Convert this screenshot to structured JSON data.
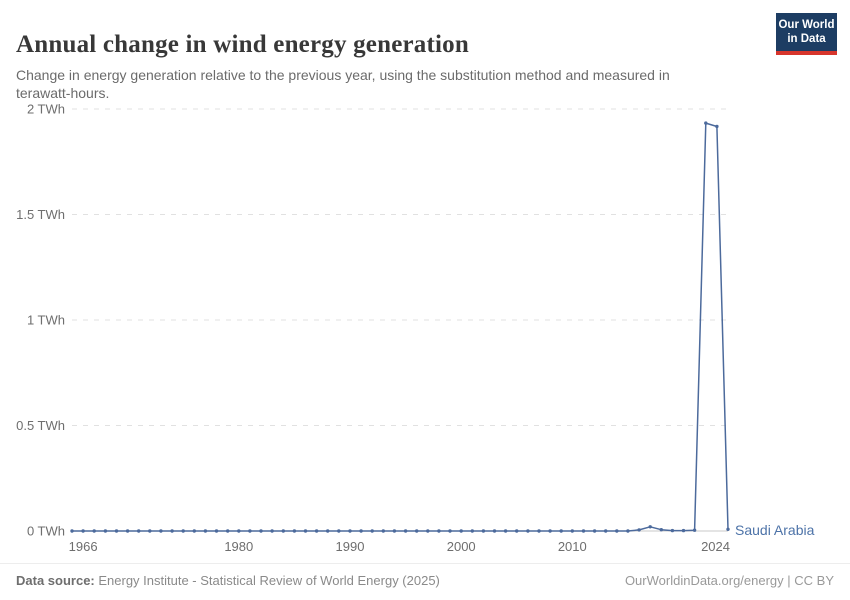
{
  "header": {
    "title": "Annual change in wind energy generation",
    "subtitle": "Change in energy generation relative to the previous year, using the substitution method and measured in terawatt-hours.",
    "logo": {
      "line1": "Our World",
      "line2": "in Data",
      "bg_color": "#1d3d63",
      "accent_color": "#d7352c"
    }
  },
  "chart_data": {
    "type": "line",
    "title": "Annual change in wind energy generation",
    "xlabel": "",
    "ylabel": "",
    "unit": "TWh",
    "xlim": [
      1965,
      2024
    ],
    "ylim": [
      0,
      2
    ],
    "grid": "horizontal-dashed",
    "legend_position": "end-of-line-label",
    "x_ticks": [
      1966,
      1980,
      1990,
      2000,
      2010,
      2024
    ],
    "y_ticks": [
      {
        "value": 0,
        "label": "0 TWh"
      },
      {
        "value": 0.5,
        "label": "0.5 TWh"
      },
      {
        "value": 1,
        "label": "1 TWh"
      },
      {
        "value": 1.5,
        "label": "1.5 TWh"
      },
      {
        "value": 2,
        "label": "2 TWh"
      }
    ],
    "series": [
      {
        "name": "Saudi Arabia",
        "color": "#4c6a9c",
        "points": [
          [
            1965,
            0
          ],
          [
            1966,
            0
          ],
          [
            1967,
            0
          ],
          [
            1968,
            0
          ],
          [
            1969,
            0
          ],
          [
            1970,
            0
          ],
          [
            1971,
            0
          ],
          [
            1972,
            0
          ],
          [
            1973,
            0
          ],
          [
            1974,
            0
          ],
          [
            1975,
            0
          ],
          [
            1976,
            0
          ],
          [
            1977,
            0
          ],
          [
            1978,
            0
          ],
          [
            1979,
            0
          ],
          [
            1980,
            0
          ],
          [
            1981,
            0
          ],
          [
            1982,
            0
          ],
          [
            1983,
            0
          ],
          [
            1984,
            0
          ],
          [
            1985,
            0
          ],
          [
            1986,
            0
          ],
          [
            1987,
            0
          ],
          [
            1988,
            0
          ],
          [
            1989,
            0
          ],
          [
            1990,
            0
          ],
          [
            1991,
            0
          ],
          [
            1992,
            0
          ],
          [
            1993,
            0
          ],
          [
            1994,
            0
          ],
          [
            1995,
            0
          ],
          [
            1996,
            0
          ],
          [
            1997,
            0
          ],
          [
            1998,
            0
          ],
          [
            1999,
            0
          ],
          [
            2000,
            0
          ],
          [
            2001,
            0
          ],
          [
            2002,
            0
          ],
          [
            2003,
            0
          ],
          [
            2004,
            0
          ],
          [
            2005,
            0
          ],
          [
            2006,
            0
          ],
          [
            2007,
            0
          ],
          [
            2008,
            0
          ],
          [
            2009,
            0
          ],
          [
            2010,
            0
          ],
          [
            2011,
            0
          ],
          [
            2012,
            0
          ],
          [
            2013,
            0
          ],
          [
            2014,
            0
          ],
          [
            2015,
            0
          ],
          [
            2016,
            0.005
          ],
          [
            2017,
            0.02
          ],
          [
            2018,
            0.006
          ],
          [
            2019,
            0.002
          ],
          [
            2020,
            0.002
          ],
          [
            2021,
            0.004
          ],
          [
            2022,
            1.933
          ],
          [
            2023,
            1.917
          ],
          [
            2024,
            0.008
          ]
        ]
      }
    ]
  },
  "footer": {
    "source_label": "Data source:",
    "source_text": " Energy Institute - Statistical Review of World Energy (2025)",
    "credit": "OurWorldinData.org/energy | CC BY"
  },
  "colors": {
    "line": "#4c6a9c",
    "entity_label": "#4d73a8",
    "gridline": "#e1e1e1",
    "zero_line": "#c9c9c9",
    "tick_text": "#6e6e6e"
  }
}
